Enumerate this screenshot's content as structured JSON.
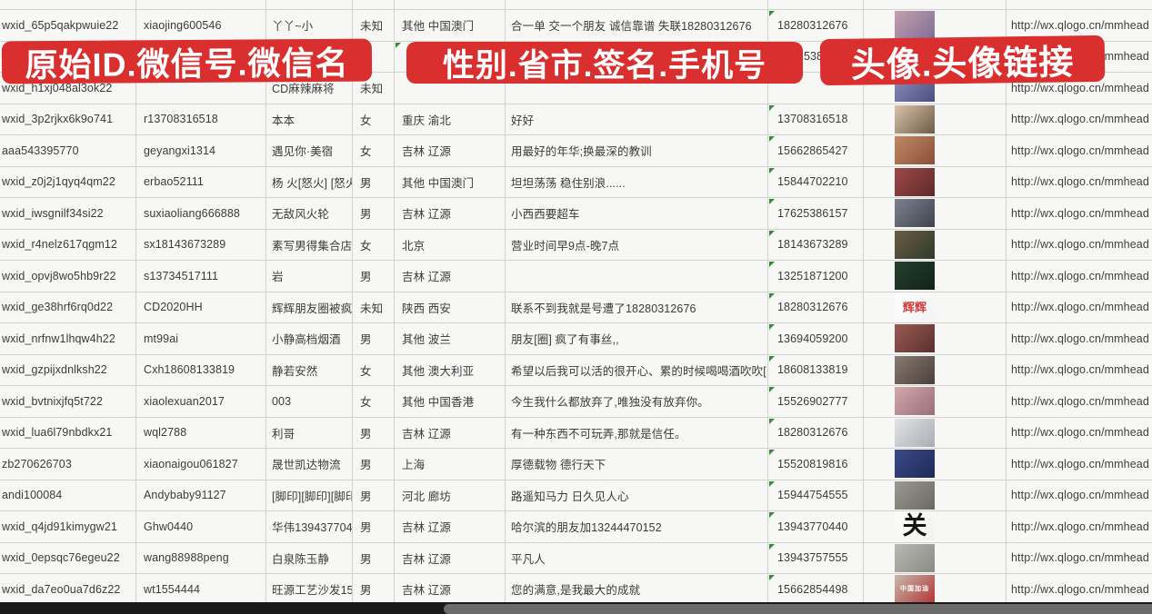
{
  "banners": {
    "id_banner": "原始ID.微信号.微信名",
    "middle_banner": "性别.省市.签名.手机号",
    "avatar_banner": "头像.头像链接"
  },
  "colors": {
    "banner_red": "#da2f2f",
    "grid_line": "#d2d2cf",
    "cell_text": "#3b3b3b",
    "note_green": "#3a8a3a",
    "bottom_bar_dark": "#1a1a1a",
    "bottom_bar_light": "#6b6b6b"
  },
  "rows": [
    {
      "id": "wxid_65p5qakpwuie22",
      "wechat_id": "xiaojing600546",
      "name": "丫丫~小",
      "gender": "未知",
      "region": "其他 中国澳门",
      "signature": "合一单 交一个朋友 诚信靠谱 失联18280312676",
      "phone": "18280312676",
      "link": "http://wx.qlogo.cn/mmhead",
      "avatar": {
        "kind": "photo",
        "c1": "#c59fae",
        "c2": "#7e6f95",
        "label": "",
        "fg": ""
      }
    },
    {
      "id": "",
      "wechat_id": "",
      "name": "",
      "gender": "-",
      "region": "",
      "signature": "",
      "phone": "5386",
      "link": "http://wx.qlogo.cn/mmhead",
      "avatar": {
        "kind": "photo",
        "c1": "#b5b5b5",
        "c2": "#8e8e8e",
        "label": "",
        "fg": ""
      },
      "phone_fragment": true,
      "region_note": true,
      "no_phone_note": true
    },
    {
      "id": "wxid_h1xj048al3ok22",
      "wechat_id": "",
      "name": "CD麻辣麻将",
      "gender": "未知",
      "region": "",
      "signature": "",
      "phone": "",
      "link": "http://wx.qlogo.cn/mmhead",
      "avatar": {
        "kind": "photo",
        "c1": "#8d8fc0",
        "c2": "#4c4f7d",
        "label": "",
        "fg": ""
      }
    },
    {
      "id": "wxid_3p2rjkx6k9o741",
      "wechat_id": "r13708316518",
      "name": "本本",
      "gender": "女",
      "region": "重庆 渝北",
      "signature": "好好",
      "phone": "13708316518",
      "link": "http://wx.qlogo.cn/mmhead",
      "avatar": {
        "kind": "photo",
        "c1": "#d8c3a8",
        "c2": "#6e5a48",
        "label": "",
        "fg": ""
      }
    },
    {
      "id": "aaa543395770",
      "wechat_id": "geyangxi1314",
      "name": "遇见你·美宿",
      "gender": "女",
      "region": "吉林 辽源",
      "signature": "用最好的年华;换最深的教训",
      "phone": "15662865427",
      "link": "http://wx.qlogo.cn/mmhead",
      "avatar": {
        "kind": "photo",
        "c1": "#c08a62",
        "c2": "#8a4f3a",
        "label": "",
        "fg": ""
      }
    },
    {
      "id": "wxid_z0j2j1qyq4qm22",
      "wechat_id": "erbao52111",
      "name": "杨 火[怒火] [怒火]",
      "gender": "男",
      "region": "其他 中国澳门",
      "signature": "坦坦荡荡 稳住别浪......",
      "phone": "15844702210",
      "link": "http://wx.qlogo.cn/mmhead",
      "avatar": {
        "kind": "photo",
        "c1": "#a04848",
        "c2": "#5e2a2a",
        "label": "",
        "fg": ""
      }
    },
    {
      "id": "wxid_iwsgnilf34si22",
      "wechat_id": "suxiaoliang666888",
      "name": "无敌风火轮",
      "gender": "男",
      "region": "吉林 辽源",
      "signature": "小西西要超车",
      "phone": "17625386157",
      "link": "http://wx.qlogo.cn/mmhead",
      "avatar": {
        "kind": "photo",
        "c1": "#7d828e",
        "c2": "#3f434d",
        "label": "",
        "fg": ""
      }
    },
    {
      "id": "wxid_r4nelz617qgm12",
      "wechat_id": "sx18143673289",
      "name": "素写男得集合店",
      "gender": "女",
      "region": "北京",
      "signature": "营业时间早9点-晚7点",
      "phone": "18143673289",
      "link": "http://wx.qlogo.cn/mmhead",
      "avatar": {
        "kind": "photo",
        "c1": "#6b5d43",
        "c2": "#2f3a2c",
        "label": "",
        "fg": ""
      }
    },
    {
      "id": "wxid_opvj8wo5hb9r22",
      "wechat_id": "s13734517111",
      "name": "岩",
      "gender": "男",
      "region": "吉林 辽源",
      "signature": "",
      "phone": "13251871200",
      "link": "http://wx.qlogo.cn/mmhead",
      "avatar": {
        "kind": "photo",
        "c1": "#24402e",
        "c2": "#132218",
        "label": "",
        "fg": ""
      }
    },
    {
      "id": "wxid_ge38hrf6rq0d22",
      "wechat_id": "CD2020HH",
      "name": "辉辉朋友圈被疯",
      "gender": "未知",
      "region": "陕西 西安",
      "signature": "联系不到我就是号遭了18280312676",
      "phone": "18280312676",
      "link": "http://wx.qlogo.cn/mmhead",
      "avatar": {
        "kind": "text",
        "c1": "#fdfdfd",
        "c2": "#f3f3f3",
        "label": "辉辉",
        "fg": "#d23b3b"
      }
    },
    {
      "id": "wxid_nrfnw1lhqw4h22",
      "wechat_id": "mt99ai",
      "name": "小静高档烟酒",
      "gender": "男",
      "region": "其他 波兰",
      "signature": "朋友[圈] 疯了有事丝,,",
      "phone": "13694059200",
      "link": "http://wx.qlogo.cn/mmhead",
      "avatar": {
        "kind": "photo",
        "c1": "#9a5a52",
        "c2": "#5a3030",
        "label": "",
        "fg": ""
      }
    },
    {
      "id": "wxid_gzpijxdnlksh22",
      "wechat_id": "Cxh18608133819",
      "name": "静若安然",
      "gender": "女",
      "region": "其他 澳大利亚",
      "signature": "希望以后我可以活的很开心、累的时候喝喝酒吹吹[",
      "phone": "18608133819",
      "link": "http://wx.qlogo.cn/mmhead",
      "avatar": {
        "kind": "photo",
        "c1": "#8a7a72",
        "c2": "#4a3f3a",
        "label": "",
        "fg": ""
      }
    },
    {
      "id": "wxid_bvtnixjfq5t722",
      "wechat_id": "xiaolexuan2017",
      "name": "003",
      "gender": "女",
      "region": "其他 中国香港",
      "signature": "今生我什么都放弃了,唯独没有放弃你。",
      "phone": "15526902777",
      "link": "http://wx.qlogo.cn/mmhead",
      "avatar": {
        "kind": "photo",
        "c1": "#d3a7ad",
        "c2": "#9a6f78",
        "label": "",
        "fg": ""
      }
    },
    {
      "id": "wxid_lua6l79nbdkx21",
      "wechat_id": "wql2788",
      "name": "利哥",
      "gender": "男",
      "region": "吉林 辽源",
      "signature": "有一种东西不可玩弄,那就是信任。",
      "phone": "18280312676",
      "link": "http://wx.qlogo.cn/mmhead",
      "avatar": {
        "kind": "photo",
        "c1": "#e2e3e5",
        "c2": "#a9adb3",
        "label": "",
        "fg": ""
      }
    },
    {
      "id": "zb270626703",
      "wechat_id": "xiaonaigou061827",
      "name": "晟世凯达物流",
      "gender": "男",
      "region": "上海",
      "signature": "厚德载物 德行天下",
      "phone": "15520819816",
      "link": "http://wx.qlogo.cn/mmhead",
      "avatar": {
        "kind": "photo",
        "c1": "#3a4a8a",
        "c2": "#1d2a55",
        "label": "",
        "fg": ""
      }
    },
    {
      "id": "andi100084",
      "wechat_id": "Andybaby91127",
      "name": "[脚印][脚印][脚印][脚印]",
      "gender": "男",
      "region": "河北 廊坊",
      "signature": "路遥知马力 日久见人心",
      "phone": "15944754555",
      "link": "http://wx.qlogo.cn/mmhead",
      "avatar": {
        "kind": "photo",
        "c1": "#9a9a93",
        "c2": "#6a6a63",
        "label": "",
        "fg": ""
      }
    },
    {
      "id": "wxid_q4jd91kimygw21",
      "wechat_id": "Ghw0440",
      "name": "华伟13943770440",
      "gender": "男",
      "region": "吉林 辽源",
      "signature": "哈尔滨的朋友加13244470152",
      "phone": "13943770440",
      "link": "http://wx.qlogo.cn/mmhead",
      "avatar": {
        "kind": "calligraphy",
        "c1": "#fbfbf9",
        "c2": "#f2f2ef",
        "label": "关",
        "fg": "#151515"
      }
    },
    {
      "id": "wxid_0epsqc76egeu22",
      "wechat_id": "wang88988peng",
      "name": "白泉陈玉静",
      "gender": "男",
      "region": "吉林 辽源",
      "signature": "平凡人",
      "phone": "13943757555",
      "link": "http://wx.qlogo.cn/mmhead",
      "avatar": {
        "kind": "photo",
        "c1": "#b9b9b4",
        "c2": "#8a8a85",
        "label": "",
        "fg": ""
      }
    },
    {
      "id": "wxid_da7eo0ua7d6z22",
      "wechat_id": "wt1554444",
      "name": "旺源工艺沙发15662854",
      "gender": "男",
      "region": "吉林 辽源",
      "signature": "您的满意,是我最大的成就",
      "phone": "15662854498",
      "link": "http://wx.qlogo.cn/mmhead",
      "avatar": {
        "kind": "banner",
        "c1": "#c7b9ae",
        "c2": "#b23434",
        "label": "中国加油",
        "fg": "#ffffff"
      }
    }
  ]
}
